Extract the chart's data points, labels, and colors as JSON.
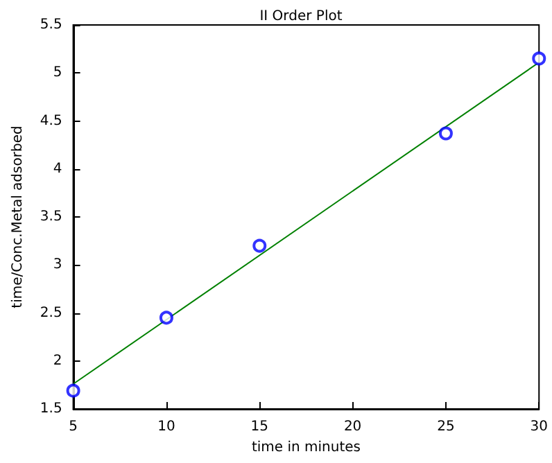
{
  "chart_data": {
    "type": "scatter",
    "title": "II Order Plot",
    "xlabel": "time in minutes",
    "ylabel": "time/Conc.Metal adsorbed",
    "series": [
      {
        "color": "#0000ff",
        "marker": "circle",
        "x": [
          5,
          10,
          15,
          25,
          30
        ],
        "values": [
          1.69,
          2.45,
          3.2,
          4.37,
          5.15
        ]
      },
      {
        "type": "line",
        "color": "#008000",
        "marker": "none",
        "line_style": "solid",
        "x": [
          5,
          30
        ],
        "values": [
          1.76,
          5.11
        ]
      }
    ],
    "xlim": [
      5,
      30
    ],
    "xticks": [
      5,
      10,
      15,
      20,
      25,
      30
    ],
    "ylim": [
      1.5,
      5.5
    ],
    "yticks": [
      1.5,
      2,
      2.5,
      3,
      3.5,
      4,
      4.5,
      5,
      5.5
    ],
    "grid": false
  }
}
